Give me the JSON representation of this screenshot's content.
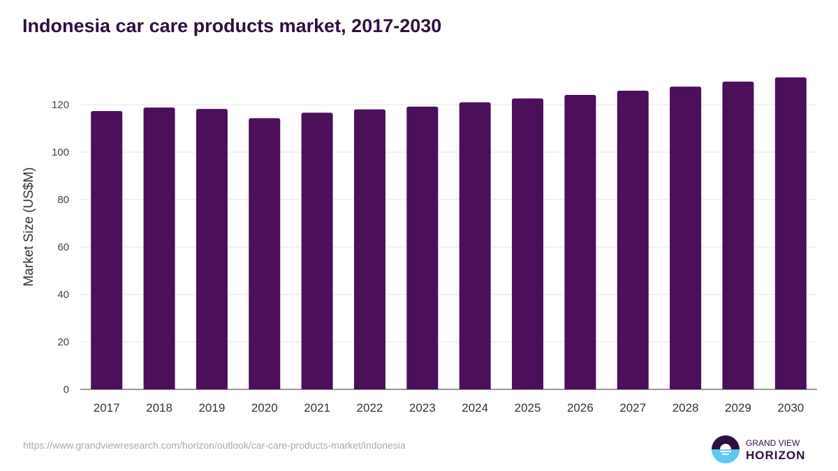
{
  "title": "Indonesia car care products market, 2017-2030",
  "source": "https://www.grandviewresearch.com/horizon/outlook/car-care-products-market/indonesia",
  "logo": {
    "line1": "GRAND VIEW",
    "line2": "HORIZON"
  },
  "colors": {
    "bar": "#4b1059",
    "title": "#2e0f3f",
    "logo_dark": "#2e0f3f",
    "logo_light": "#5bc8f5"
  },
  "chart_data": {
    "type": "bar",
    "title": "Indonesia car care products market, 2017-2030",
    "xlabel": "",
    "ylabel": "Market Size (US$M)",
    "ylim": [
      0,
      132
    ],
    "yticks": [
      0,
      20,
      40,
      60,
      80,
      100,
      120
    ],
    "grid": true,
    "categories": [
      "2017",
      "2018",
      "2019",
      "2020",
      "2021",
      "2022",
      "2023",
      "2024",
      "2025",
      "2026",
      "2027",
      "2028",
      "2029",
      "2030"
    ],
    "values": [
      117.3,
      118.8,
      118.2,
      114.3,
      116.6,
      118.0,
      119.2,
      121.0,
      122.6,
      124.1,
      125.9,
      127.6,
      129.7,
      131.5
    ]
  }
}
